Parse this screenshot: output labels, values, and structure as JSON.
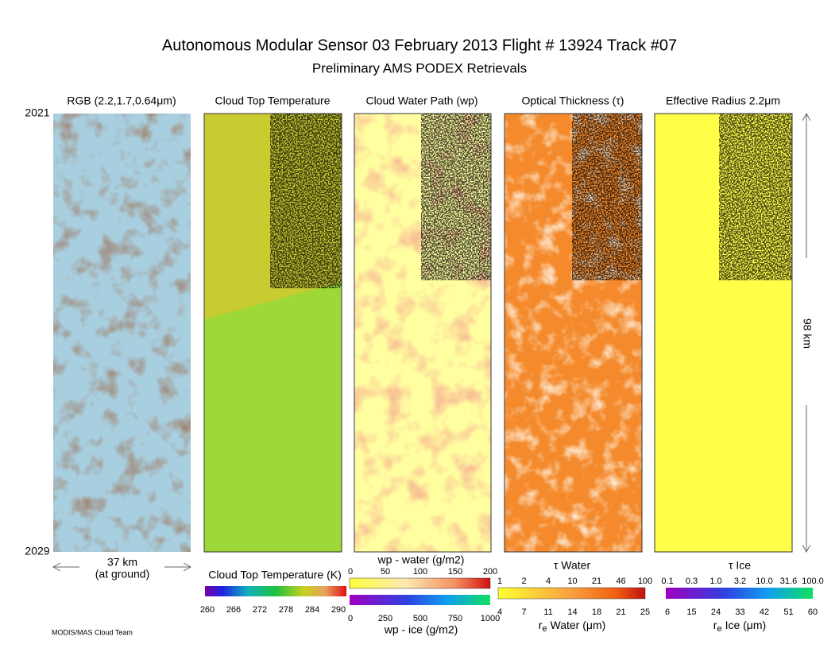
{
  "header": {
    "title": "Autonomous Modular Sensor  03 February 2013  Flight # 13924 Track #07",
    "subtitle": "Preliminary AMS PODEX Retrievals"
  },
  "panels": [
    {
      "title": "RGB (2.2,1.7,0.64μm)"
    },
    {
      "title": "Cloud Top Temperature"
    },
    {
      "title": "Cloud Water Path (wp)"
    },
    {
      "title": "Optical Thickness (τ)"
    },
    {
      "title": "Effective Radius 2.2μm"
    }
  ],
  "scan": {
    "start": "2021",
    "end": "2029",
    "width": "37 km",
    "width_note": "(at ground)",
    "length": "98 km"
  },
  "colorbars": {
    "temperature": {
      "label": "Cloud Top Temperature (K)",
      "ticks": [
        "260",
        "266",
        "272",
        "278",
        "284",
        "290"
      ]
    },
    "wp_water": {
      "label": "wp - water (g/m2)",
      "ticks": [
        "0",
        "50",
        "100",
        "150",
        "200"
      ]
    },
    "wp_ice": {
      "label": "wp - ice (g/m2)",
      "ticks": [
        "0",
        "250",
        "500",
        "750",
        "1000"
      ]
    },
    "tau_water": {
      "label": "τ Water",
      "ticks": [
        "1",
        "2",
        "4",
        "10",
        "21",
        "46",
        "100"
      ]
    },
    "re_water": {
      "symbol": "r",
      "sub": "e",
      "label": "Water (μm)",
      "ticks": [
        "4",
        "7",
        "11",
        "14",
        "18",
        "21",
        "25"
      ]
    },
    "tau_ice": {
      "label": "τ Ice",
      "ticks": [
        "0.1",
        "0.3",
        "1.0",
        "3.2",
        "10.0",
        "31.6",
        "100.0"
      ]
    },
    "re_ice": {
      "symbol": "r",
      "sub": "e",
      "label": "Ice (μm)",
      "ticks": [
        "6",
        "15",
        "24",
        "33",
        "42",
        "51",
        "60"
      ]
    }
  },
  "credit": "MODIS/MAS Cloud Team"
}
